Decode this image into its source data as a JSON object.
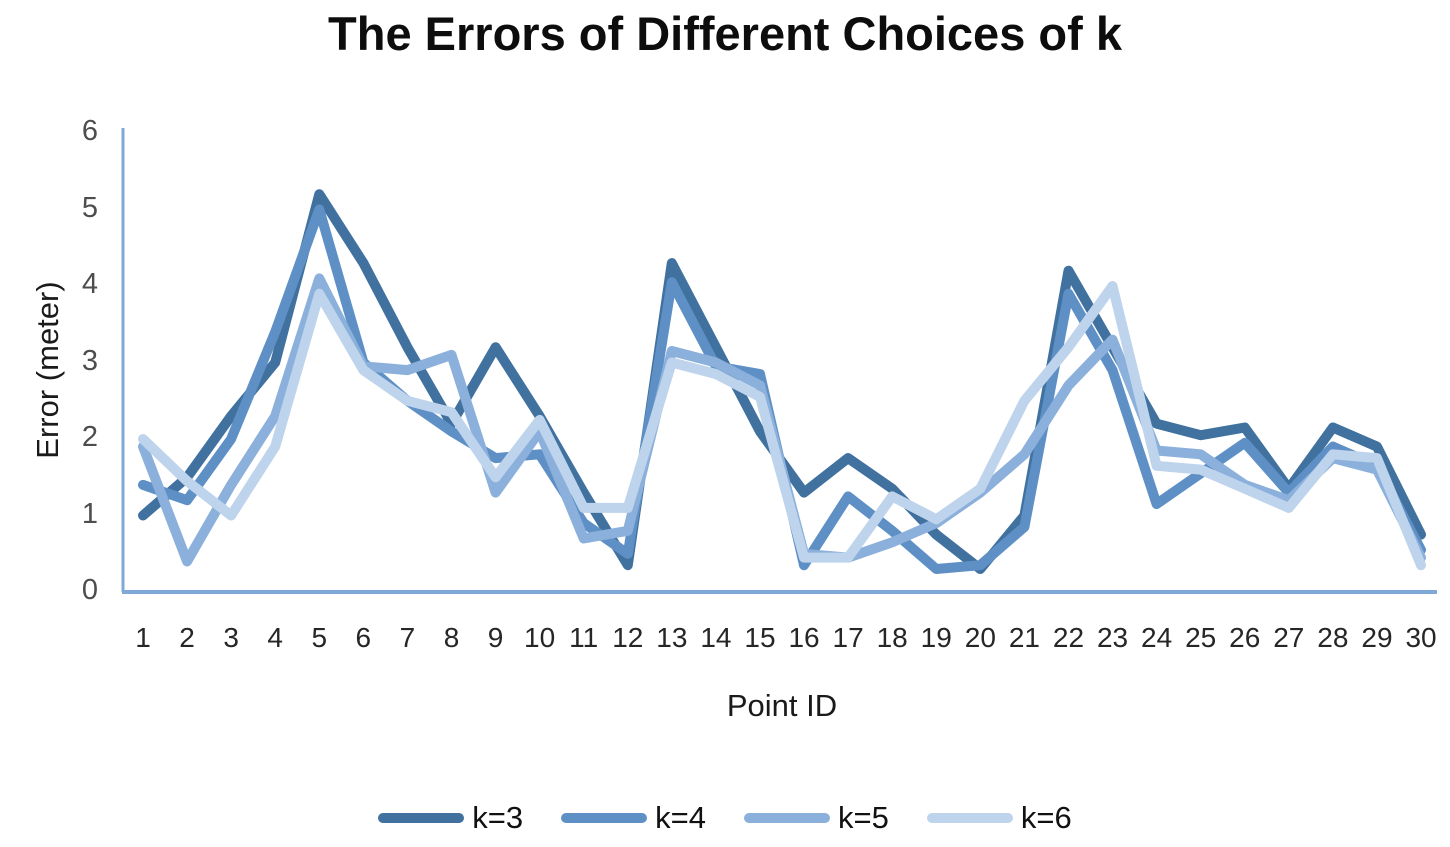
{
  "title": "The Errors of Different Choices of k",
  "chart_data": {
    "type": "line",
    "title": "The Errors of Different Choices of k",
    "xlabel": "Point ID",
    "ylabel": "Error (meter)",
    "ylim": [
      0,
      6
    ],
    "yticks": [
      0,
      1,
      2,
      3,
      4,
      5,
      6
    ],
    "grid": false,
    "legend_position": "bottom",
    "axis_color": "#7FA9D6",
    "x": [
      1,
      2,
      3,
      4,
      5,
      6,
      7,
      8,
      9,
      10,
      11,
      12,
      13,
      14,
      15,
      16,
      17,
      18,
      19,
      20,
      21,
      22,
      23,
      24,
      25,
      26,
      27,
      28,
      29,
      30
    ],
    "series": [
      {
        "name": "k=3",
        "color": "#40719F",
        "values": [
          1.0,
          1.5,
          2.3,
          3.0,
          5.2,
          4.3,
          3.2,
          2.2,
          3.2,
          2.3,
          1.3,
          0.35,
          4.3,
          3.2,
          2.1,
          1.3,
          1.75,
          1.35,
          0.75,
          0.3,
          1.0,
          4.2,
          3.2,
          2.2,
          2.05,
          2.15,
          1.35,
          2.15,
          1.9,
          0.75
        ]
      },
      {
        "name": "k=4",
        "color": "#5E90C6",
        "values": [
          1.4,
          1.2,
          2.0,
          3.4,
          5.0,
          3.0,
          2.5,
          2.1,
          1.75,
          1.8,
          0.9,
          0.5,
          4.05,
          2.95,
          2.85,
          0.35,
          1.25,
          0.8,
          0.3,
          0.35,
          0.85,
          3.9,
          2.9,
          1.15,
          1.55,
          1.95,
          1.3,
          1.9,
          1.65,
          0.55
        ]
      },
      {
        "name": "k=5",
        "color": "#8BB0DB",
        "values": [
          1.9,
          0.4,
          1.4,
          2.3,
          4.1,
          2.95,
          2.9,
          3.1,
          1.3,
          2.1,
          0.7,
          0.8,
          3.15,
          3.0,
          2.7,
          0.5,
          0.45,
          0.65,
          0.9,
          1.3,
          1.8,
          2.7,
          3.3,
          1.85,
          1.8,
          1.4,
          1.2,
          1.75,
          1.6,
          0.45
        ]
      },
      {
        "name": "k=6",
        "color": "#BED3EC",
        "values": [
          2.0,
          1.45,
          1.0,
          1.9,
          3.9,
          2.9,
          2.5,
          2.35,
          1.5,
          2.25,
          1.1,
          1.1,
          3.0,
          2.85,
          2.55,
          0.45,
          0.45,
          1.25,
          0.95,
          1.35,
          2.5,
          3.2,
          4.0,
          1.65,
          1.6,
          1.35,
          1.1,
          1.8,
          1.75,
          0.35
        ]
      }
    ]
  }
}
